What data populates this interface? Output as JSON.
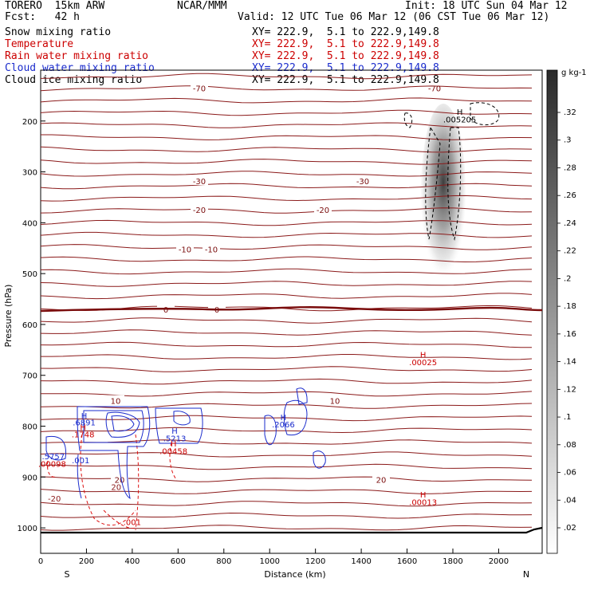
{
  "header": {
    "model": "TORERO  15km ARW",
    "center": "NCAR/MMM",
    "init": "Init: 18 UTC Sun 04 Mar 12",
    "fcst": "Fcst:   42 h",
    "valid": "Valid: 12 UTC Tue 06 Mar 12 (06 CST Tue 06 Mar 12)",
    "fields": [
      {
        "name": "Snow mixing ratio",
        "xy": "XY= 222.9,  5.1 to 222.9,149.8",
        "color": "#000000"
      },
      {
        "name": "Temperature",
        "xy": "XY= 222.9,  5.1 to 222.9,149.8",
        "color": "#cc0000"
      },
      {
        "name": "Rain water mixing ratio",
        "xy": "XY= 222.9,  5.1 to 222.9,149.8",
        "color": "#cc0000"
      },
      {
        "name": "Cloud water mixing ratio",
        "xy": "XY= 222.9,  5.1 to 222.9,149.8",
        "color": "#1a2bcc"
      },
      {
        "name": "Cloud ice mixing ratio",
        "xy": "XY= 222.9,  5.1 to 222.9,149.8",
        "color": "#000000"
      }
    ]
  },
  "chart_data": {
    "type": "contour cross-section",
    "xlabel": "Distance (km)",
    "ylabel": "Pressure (hPa)",
    "xlim": [
      0,
      2190
    ],
    "ylim": [
      1050,
      100
    ],
    "x_ticks": [
      0,
      200,
      400,
      600,
      800,
      1000,
      1200,
      1400,
      1600,
      1800,
      2000
    ],
    "y_ticks": [
      200,
      300,
      400,
      500,
      600,
      700,
      800,
      900,
      1000
    ],
    "x_end_labels": {
      "left": "S",
      "right": "N"
    },
    "colorbar": {
      "unit": "g kg-1",
      "ticks": [
        ".02",
        ".04",
        ".06",
        ".08",
        ".1",
        ".12",
        ".14",
        ".16",
        ".18",
        ".2",
        ".22",
        ".24",
        ".26",
        ".28",
        ".3",
        ".32"
      ]
    },
    "temperature_contours": [
      {
        "label": "-70",
        "p": 135
      },
      {
        "label": "-30",
        "p": 318
      },
      {
        "label": "-20",
        "p": 374
      },
      {
        "label": "-10",
        "p": 452
      },
      {
        "label": "0",
        "p": 570
      },
      {
        "label": "10",
        "p": 750
      },
      {
        "label": "20",
        "p": 905
      }
    ],
    "annotations": [
      {
        "text": "H",
        "x": 1830,
        "y": 188,
        "color": "#000000"
      },
      {
        "text": ".005205",
        "x": 1830,
        "y": 203,
        "color": "#000000"
      },
      {
        "text": "H",
        "x": 1670,
        "y": 665,
        "color": "#cc0000"
      },
      {
        "text": ".00025",
        "x": 1670,
        "y": 680,
        "color": "#cc0000"
      },
      {
        "text": "H",
        "x": 1670,
        "y": 940,
        "color": "#cc0000"
      },
      {
        "text": ".00013",
        "x": 1670,
        "y": 955,
        "color": "#cc0000"
      },
      {
        "text": "H",
        "x": 190,
        "y": 785,
        "color": "#1a2bcc"
      },
      {
        "text": ".6891",
        "x": 190,
        "y": 798,
        "color": "#1a2bcc"
      },
      {
        "text": "H",
        "x": 185,
        "y": 808,
        "color": "#cc0000"
      },
      {
        "text": ".1748",
        "x": 185,
        "y": 822,
        "color": "#cc0000"
      },
      {
        "text": ".5757",
        "x": 55,
        "y": 865,
        "color": "#1a2bcc"
      },
      {
        "text": ".00098",
        "x": 50,
        "y": 880,
        "color": "#cc0000"
      },
      {
        "text": ".001",
        "x": 175,
        "y": 873,
        "color": "#1a2bcc"
      },
      {
        "text": "H",
        "x": 585,
        "y": 815,
        "color": "#1a2bcc"
      },
      {
        "text": ".5213",
        "x": 585,
        "y": 830,
        "color": "#1a2bcc"
      },
      {
        "text": "H",
        "x": 580,
        "y": 840,
        "color": "#cc0000"
      },
      {
        "text": ".00458",
        "x": 580,
        "y": 855,
        "color": "#cc0000"
      },
      {
        "text": "H",
        "x": 1060,
        "y": 788,
        "color": "#1a2bcc"
      },
      {
        "text": ".2066",
        "x": 1060,
        "y": 802,
        "color": "#1a2bcc"
      },
      {
        "text": ".001",
        "x": 400,
        "y": 994,
        "color": "#cc0000"
      },
      {
        "text": "20",
        "x": 330,
        "y": 925,
        "color": "#8b1a1a"
      },
      {
        "text": "-20",
        "x": 60,
        "y": 948,
        "color": "#8b1a1a"
      }
    ]
  }
}
